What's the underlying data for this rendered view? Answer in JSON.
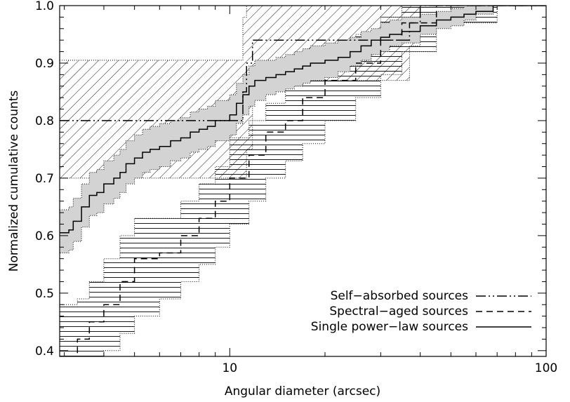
{
  "chart_data": {
    "type": "line",
    "xlabel": "Angular diameter (arcsec)",
    "ylabel": "Normalized cumulative counts",
    "xscale": "log",
    "xlim": [
      2.9,
      100
    ],
    "ylim": [
      0.39,
      1.0
    ],
    "x_ticks": [
      {
        "value": 10,
        "label": "10"
      },
      {
        "value": 100,
        "label": "100"
      }
    ],
    "y_ticks": [
      {
        "value": 0.4,
        "label": "0.4"
      },
      {
        "value": 0.5,
        "label": "0.5"
      },
      {
        "value": 0.6,
        "label": "0.6"
      },
      {
        "value": 0.7,
        "label": "0.7"
      },
      {
        "value": 0.8,
        "label": "0.8"
      },
      {
        "value": 0.9,
        "label": "0.9"
      },
      {
        "value": 1.0,
        "label": "1.0"
      }
    ],
    "legend_position": "bottom-right",
    "series": [
      {
        "name": "Self−absorbed sources",
        "style": "dash-dot-dot",
        "band": "diagonal-hatch",
        "x": [
          2.9,
          10.5,
          11.0,
          11.3,
          11.8,
          35.8,
          37.0,
          40.0,
          100
        ],
        "y": [
          0.8,
          0.8,
          0.85,
          0.9,
          0.94,
          0.94,
          0.97,
          1.0,
          1.0
        ],
        "band_lower": [
          0.7,
          0.7,
          0.7,
          0.75,
          0.87,
          0.87,
          0.93,
          1.0,
          1.0
        ],
        "band_upper": [
          0.905,
          0.905,
          0.98,
          1.0,
          1.0,
          1.0,
          1.0,
          1.0,
          1.0
        ]
      },
      {
        "name": "Spectral−aged sources",
        "style": "dashed",
        "band": "horizontal-hatch",
        "x": [
          2.9,
          3.3,
          3.6,
          4.0,
          4.5,
          5.0,
          6.0,
          7.0,
          8.0,
          9.0,
          10.0,
          11.5,
          13.0,
          15.0,
          17.0,
          20.0,
          25.0,
          30.0,
          35.0,
          45.0,
          70.0,
          100
        ],
        "y": [
          0.39,
          0.42,
          0.45,
          0.48,
          0.52,
          0.56,
          0.57,
          0.6,
          0.63,
          0.66,
          0.7,
          0.74,
          0.78,
          0.8,
          0.84,
          0.87,
          0.9,
          0.94,
          0.97,
          1.0,
          1.0,
          1.0
        ],
        "band_lower": [
          0.38,
          0.38,
          0.38,
          0.4,
          0.43,
          0.46,
          0.49,
          0.52,
          0.55,
          0.58,
          0.62,
          0.66,
          0.7,
          0.73,
          0.76,
          0.8,
          0.84,
          0.88,
          0.92,
          0.97,
          1.0,
          1.0
        ],
        "band_upper": [
          0.48,
          0.49,
          0.52,
          0.56,
          0.6,
          0.63,
          0.63,
          0.66,
          0.69,
          0.72,
          0.77,
          0.8,
          0.83,
          0.86,
          0.89,
          0.92,
          0.95,
          0.98,
          1.0,
          1.0,
          1.0,
          1.0
        ]
      },
      {
        "name": "Single power−law sources",
        "style": "solid",
        "band": "gray-fill",
        "x": [
          2.9,
          3.1,
          3.2,
          3.4,
          3.6,
          3.8,
          4.0,
          4.3,
          4.5,
          4.7,
          5.0,
          5.3,
          5.6,
          6.0,
          6.5,
          7.0,
          7.5,
          8.0,
          8.5,
          9.0,
          9.5,
          10.0,
          10.5,
          11.0,
          11.5,
          12.0,
          13.0,
          14.0,
          15.0,
          16.0,
          17.0,
          18.0,
          20.0,
          22.0,
          24.0,
          26.0,
          28.0,
          30.0,
          32.0,
          35.0,
          40.0,
          45.0,
          50.0,
          55.0,
          60.0,
          68.0,
          80.0,
          100
        ],
        "y": [
          0.605,
          0.61,
          0.625,
          0.65,
          0.67,
          0.675,
          0.69,
          0.7,
          0.71,
          0.725,
          0.735,
          0.745,
          0.75,
          0.755,
          0.765,
          0.77,
          0.78,
          0.785,
          0.79,
          0.8,
          0.8,
          0.81,
          0.83,
          0.845,
          0.86,
          0.87,
          0.875,
          0.88,
          0.885,
          0.89,
          0.895,
          0.9,
          0.905,
          0.91,
          0.92,
          0.93,
          0.94,
          0.945,
          0.95,
          0.955,
          0.965,
          0.975,
          0.98,
          0.985,
          0.99,
          1.0,
          1.0,
          1.0
        ],
        "band_lower": [
          0.57,
          0.575,
          0.59,
          0.615,
          0.635,
          0.64,
          0.655,
          0.665,
          0.675,
          0.69,
          0.7,
          0.71,
          0.715,
          0.72,
          0.73,
          0.735,
          0.745,
          0.75,
          0.755,
          0.765,
          0.765,
          0.775,
          0.795,
          0.81,
          0.825,
          0.835,
          0.845,
          0.85,
          0.855,
          0.86,
          0.865,
          0.87,
          0.875,
          0.885,
          0.895,
          0.905,
          0.915,
          0.92,
          0.93,
          0.935,
          0.95,
          0.96,
          0.965,
          0.975,
          0.985,
          1.0,
          1.0,
          1.0
        ],
        "band_upper": [
          0.645,
          0.65,
          0.665,
          0.69,
          0.71,
          0.715,
          0.73,
          0.74,
          0.75,
          0.765,
          0.775,
          0.785,
          0.79,
          0.795,
          0.8,
          0.805,
          0.815,
          0.82,
          0.825,
          0.835,
          0.835,
          0.845,
          0.865,
          0.88,
          0.895,
          0.905,
          0.905,
          0.91,
          0.915,
          0.92,
          0.925,
          0.93,
          0.935,
          0.94,
          0.945,
          0.955,
          0.96,
          0.97,
          0.975,
          0.98,
          0.985,
          0.99,
          0.995,
          1.0,
          1.0,
          1.0,
          1.0,
          1.0
        ]
      }
    ]
  }
}
